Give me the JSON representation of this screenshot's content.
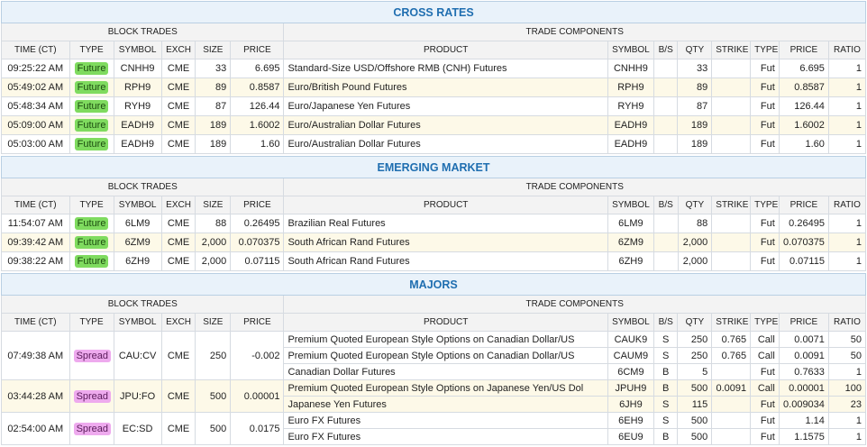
{
  "sections": [
    {
      "title": "CROSS RATES",
      "block_header": "BLOCK TRADES",
      "components_header": "TRADE COMPONENTS",
      "block_columns": [
        "TIME (CT)",
        "TYPE",
        "SYMBOL",
        "EXCH",
        "SIZE",
        "PRICE"
      ],
      "component_columns": [
        "PRODUCT",
        "SYMBOL",
        "B/S",
        "QTY",
        "STRIKE",
        "TYPE",
        "PRICE",
        "RATIO"
      ],
      "trades": [
        {
          "block": [
            "09:25:22 AM",
            "Future",
            "CNHH9",
            "CME",
            "33",
            "6.695"
          ],
          "components": [
            [
              "Standard-Size USD/Offshore RMB (CNH) Futures",
              "CNHH9",
              null,
              "33",
              null,
              "Fut",
              "6.695",
              "1"
            ]
          ]
        },
        {
          "block": [
            "05:49:02 AM",
            "Future",
            "RPH9",
            "CME",
            "89",
            "0.8587"
          ],
          "components": [
            [
              "Euro/British Pound Futures",
              "RPH9",
              null,
              "89",
              null,
              "Fut",
              "0.8587",
              "1"
            ]
          ]
        },
        {
          "block": [
            "05:48:34 AM",
            "Future",
            "RYH9",
            "CME",
            "87",
            "126.44"
          ],
          "components": [
            [
              "Euro/Japanese Yen Futures",
              "RYH9",
              null,
              "87",
              null,
              "Fut",
              "126.44",
              "1"
            ]
          ]
        },
        {
          "block": [
            "05:09:00 AM",
            "Future",
            "EADH9",
            "CME",
            "189",
            "1.6002"
          ],
          "components": [
            [
              "Euro/Australian Dollar Futures",
              "EADH9",
              null,
              "189",
              null,
              "Fut",
              "1.6002",
              "1"
            ]
          ]
        },
        {
          "block": [
            "05:03:00 AM",
            "Future",
            "EADH9",
            "CME",
            "189",
            "1.60"
          ],
          "components": [
            [
              "Euro/Australian Dollar Futures",
              "EADH9",
              null,
              "189",
              null,
              "Fut",
              "1.60",
              "1"
            ]
          ]
        }
      ]
    },
    {
      "title": "EMERGING MARKET",
      "block_header": "BLOCK TRADES",
      "components_header": "TRADE COMPONENTS",
      "block_columns": [
        "TIME (CT)",
        "TYPE",
        "SYMBOL",
        "EXCH",
        "SIZE",
        "PRICE"
      ],
      "component_columns": [
        "PRODUCT",
        "SYMBOL",
        "B/S",
        "QTY",
        "STRIKE",
        "TYPE",
        "PRICE",
        "RATIO"
      ],
      "trades": [
        {
          "block": [
            "11:54:07 AM",
            "Future",
            "6LM9",
            "CME",
            "88",
            "0.26495"
          ],
          "components": [
            [
              "Brazilian Real Futures",
              "6LM9",
              null,
              "88",
              null,
              "Fut",
              "0.26495",
              "1"
            ]
          ]
        },
        {
          "block": [
            "09:39:42 AM",
            "Future",
            "6ZM9",
            "CME",
            "2,000",
            "0.070375"
          ],
          "components": [
            [
              "South African Rand Futures",
              "6ZM9",
              null,
              "2,000",
              null,
              "Fut",
              "0.070375",
              "1"
            ]
          ]
        },
        {
          "block": [
            "09:38:22 AM",
            "Future",
            "6ZH9",
            "CME",
            "2,000",
            "0.07115"
          ],
          "components": [
            [
              "South African Rand Futures",
              "6ZH9",
              null,
              "2,000",
              null,
              "Fut",
              "0.07115",
              "1"
            ]
          ]
        }
      ]
    },
    {
      "title": "MAJORS",
      "block_header": "BLOCK TRADES",
      "components_header": "TRADE COMPONENTS",
      "block_columns": [
        "TIME (CT)",
        "TYPE",
        "SYMBOL",
        "EXCH",
        "SIZE",
        "PRICE"
      ],
      "component_columns": [
        "PRODUCT",
        "SYMBOL",
        "B/S",
        "QTY",
        "STRIKE",
        "TYPE",
        "PRICE",
        "RATIO"
      ],
      "trades": [
        {
          "block": [
            "07:49:38 AM",
            "Spread",
            "CAU:CV",
            "CME",
            "250",
            "-0.002"
          ],
          "components": [
            [
              "Premium Quoted European Style Options on Canadian Dollar/US",
              "CAUK9",
              "S",
              "250",
              "0.765",
              "Call",
              "0.0071",
              "50"
            ],
            [
              "Premium Quoted European Style Options on Canadian Dollar/US",
              "CAUM9",
              "S",
              "250",
              "0.765",
              "Call",
              "0.0091",
              "50"
            ],
            [
              "Canadian Dollar Futures",
              "6CM9",
              "B",
              "5",
              null,
              "Fut",
              "0.7633",
              "1"
            ]
          ]
        },
        {
          "block": [
            "03:44:28 AM",
            "Spread",
            "JPU:FO",
            "CME",
            "500",
            "0.00001"
          ],
          "components": [
            [
              "Premium Quoted European Style Options on Japanese Yen/US Dol",
              "JPUH9",
              "B",
              "500",
              "0.0091",
              "Call",
              "0.00001",
              "100"
            ],
            [
              "Japanese Yen Futures",
              "6JH9",
              "S",
              "115",
              null,
              "Fut",
              "0.009034",
              "23"
            ]
          ]
        },
        {
          "block": [
            "02:54:00 AM",
            "Spread",
            "EC:SD",
            "CME",
            "500",
            "0.0175"
          ],
          "components": [
            [
              "Euro FX Futures",
              "6EH9",
              "S",
              "500",
              null,
              "Fut",
              "1.14",
              "1"
            ],
            [
              "Euro FX Futures",
              "6EU9",
              "B",
              "500",
              null,
              "Fut",
              "1.1575",
              "1"
            ]
          ]
        }
      ]
    }
  ]
}
